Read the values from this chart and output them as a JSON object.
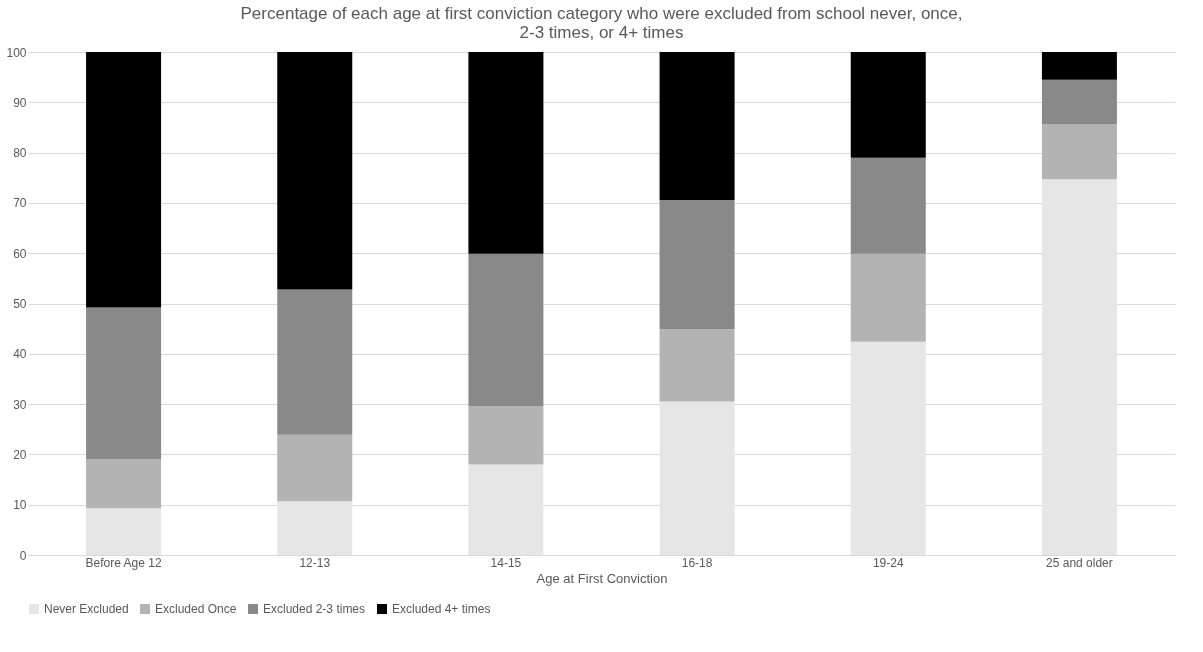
{
  "chart_data": {
    "type": "bar",
    "stacked": true,
    "title": [
      "Percentage of each age at first conviction category who were excluded from school never, once,",
      "2-3 times, or 4+ times"
    ],
    "xlabel": "Age at First Conviction",
    "categories": [
      "Before Age 12",
      "12-13",
      "14-15",
      "16-18",
      "19-24",
      "25 and older"
    ],
    "series": [
      {
        "name": "Never Excluded",
        "color": "#e6e6e6",
        "values": [
          9.3,
          10.7,
          18.0,
          30.5,
          42.4,
          74.7
        ]
      },
      {
        "name": "Excluded Once",
        "color": "#b3b3b3",
        "values": [
          9.8,
          13.2,
          11.6,
          14.4,
          17.5,
          10.9
        ]
      },
      {
        "name": "Excluded 2-3 times",
        "color": "#898989",
        "values": [
          30.1,
          28.9,
          30.3,
          25.7,
          19.1,
          8.9
        ]
      },
      {
        "name": "Excluded 4+ times",
        "color": "#000000",
        "values": [
          50.8,
          47.2,
          40.1,
          29.4,
          21.0,
          5.5
        ]
      }
    ],
    "ylim": [
      0,
      100
    ],
    "yticks": [
      0,
      10,
      20,
      30,
      40,
      50,
      60,
      70,
      80,
      90,
      100
    ],
    "grid": "y",
    "legend": "bottom"
  }
}
